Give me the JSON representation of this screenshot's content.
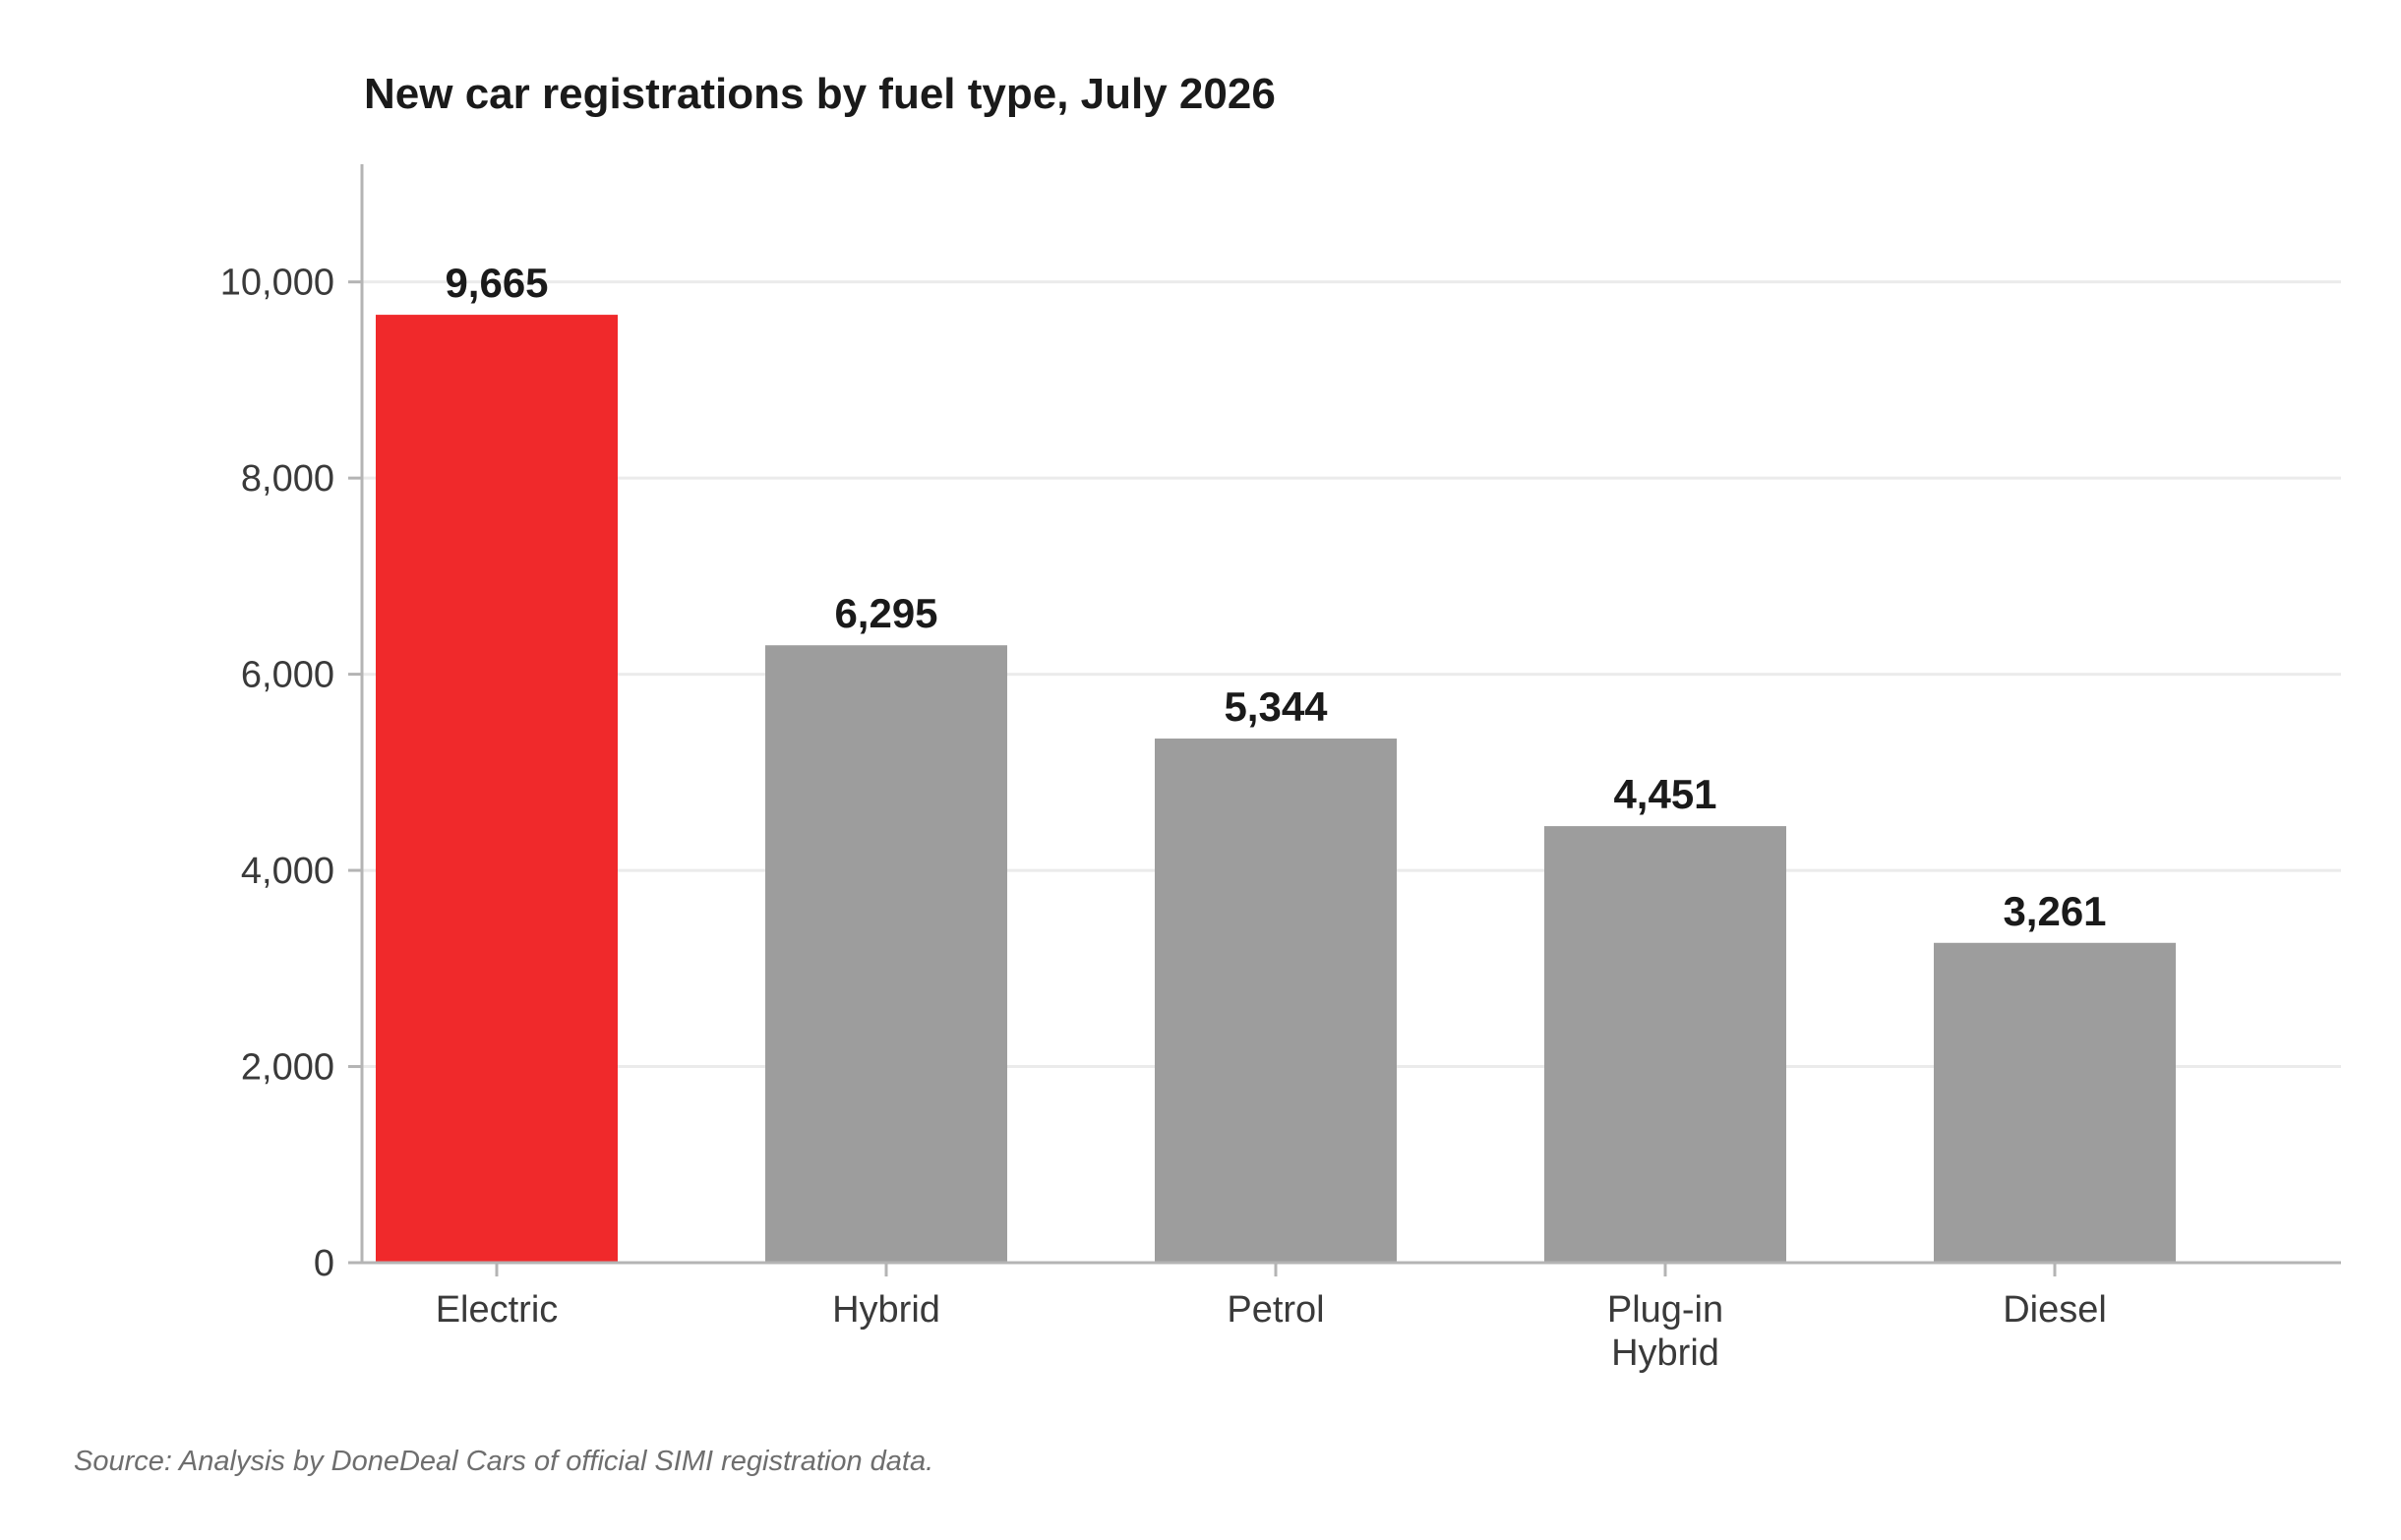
{
  "chart_data": {
    "type": "bar",
    "title": "New car registrations by fuel type, July 2026",
    "categories": [
      [
        "Electric"
      ],
      [
        "Hybrid"
      ],
      [
        "Petrol"
      ],
      [
        "Plug-in",
        "Hybrid"
      ],
      [
        "Diesel"
      ]
    ],
    "values": [
      9665,
      6295,
      5344,
      4451,
      3261
    ],
    "value_labels": [
      "9,665",
      "6,295",
      "5,344",
      "4,451",
      "3,261"
    ],
    "ylim": [
      0,
      11200
    ],
    "yticks": [
      0,
      2000,
      4000,
      6000,
      8000,
      10000
    ],
    "ytick_labels": [
      "0",
      "2,000",
      "4,000",
      "6,000",
      "8,000",
      "10,000"
    ],
    "xlabel": "",
    "ylabel": "",
    "grid": "horizontal",
    "legend": "none",
    "colors": {
      "highlight": "#f0292b",
      "default": "#9d9d9d",
      "grid": "#ebebeb",
      "axis": "#b4b4b4"
    },
    "highlight_index": 0
  },
  "source": "Source: Analysis by DoneDeal Cars of official SIMI registration data."
}
